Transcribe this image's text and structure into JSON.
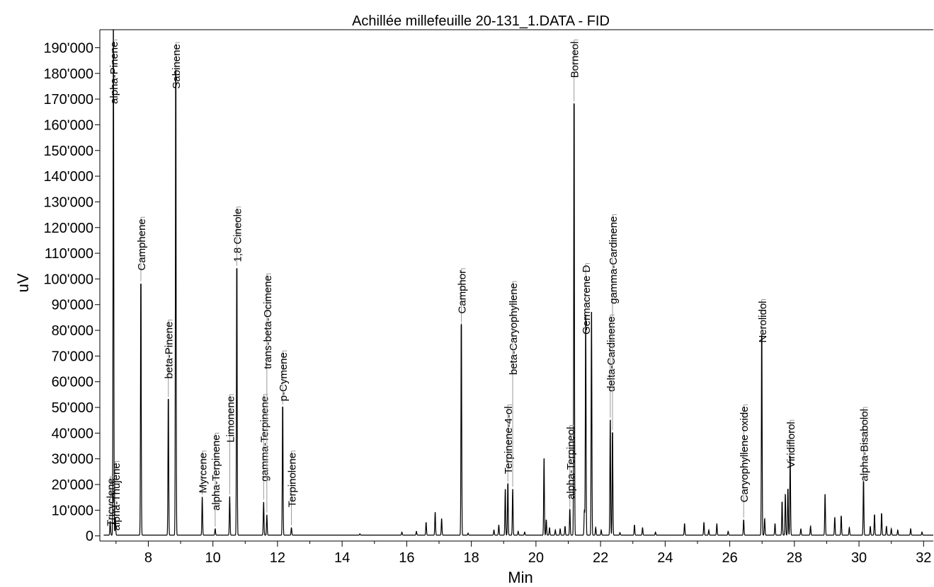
{
  "chart_data": {
    "type": "line",
    "title": "Achillée millefeuille 20-131_1.DATA - FID",
    "xlabel": "Min",
    "ylabel": "uV",
    "xlim": [
      6.5,
      32.3
    ],
    "ylim": [
      -2000,
      197000
    ],
    "xticks": [
      8,
      10,
      12,
      14,
      16,
      18,
      20,
      22,
      24,
      26,
      28,
      30,
      32
    ],
    "xtick_labels": [
      "8",
      "10",
      "12",
      "14",
      "16",
      "18",
      "20",
      "22",
      "24",
      "26",
      "28",
      "30",
      "32"
    ],
    "yticks": [
      0,
      10000,
      20000,
      30000,
      40000,
      50000,
      60000,
      70000,
      80000,
      90000,
      100000,
      110000,
      120000,
      130000,
      140000,
      150000,
      160000,
      170000,
      180000,
      190000
    ],
    "ytick_labels": [
      "0",
      "10'000",
      "20'000",
      "30'000",
      "40'000",
      "50'000",
      "60'000",
      "70'000",
      "80'000",
      "90'000",
      "100'000",
      "110'000",
      "120'000",
      "130'000",
      "140'000",
      "150'000",
      "160'000",
      "170'000",
      "180'000",
      "190'000"
    ],
    "grid": false,
    "legend": "none",
    "labeled_peaks": [
      {
        "name": "Tricyclene",
        "rt": 6.82,
        "height": 5500,
        "label_top": 23000
      },
      {
        "name": "alpha-Thujene",
        "rt": 6.98,
        "height": 7000,
        "label_top": 29000
      },
      {
        "name": "alpha-Pinene",
        "rt": 6.92,
        "height": 200000,
        "label_top": 193000
      },
      {
        "name": "Camphene",
        "rt": 7.77,
        "height": 98000,
        "label_top": 124000
      },
      {
        "name": "beta-Pinene",
        "rt": 8.62,
        "height": 53000,
        "label_top": 84000
      },
      {
        "name": "Sabinene",
        "rt": 8.85,
        "height": 181000,
        "label_top": 192000
      },
      {
        "name": "Myrcene",
        "rt": 9.67,
        "height": 15000,
        "label_top": 33000
      },
      {
        "name": "alpha-Terpinene",
        "rt": 10.07,
        "height": 2500,
        "label_top": 40000
      },
      {
        "name": "Limonene",
        "rt": 10.52,
        "height": 15000,
        "label_top": 55000
      },
      {
        "name": "1,8 Cineole",
        "rt": 10.74,
        "height": 104000,
        "label_top": 128000
      },
      {
        "name": "gamma-Terpinene",
        "rt": 11.57,
        "height": 13000,
        "label_top": 55000
      },
      {
        "name": "trans-beta-Ocimene",
        "rt": 11.67,
        "height": 8000,
        "label_top": 102000
      },
      {
        "name": "p-Cymene",
        "rt": 12.16,
        "height": 50000,
        "label_top": 72000
      },
      {
        "name": "Terpinolene",
        "rt": 12.43,
        "height": 3000,
        "label_top": 33000
      },
      {
        "name": "Camphor",
        "rt": 17.69,
        "height": 82000,
        "label_top": 104000
      },
      {
        "name": "Terpinene-4-ol",
        "rt": 19.13,
        "height": 20000,
        "label_top": 51000
      },
      {
        "name": "beta-Caryophyllene",
        "rt": 19.28,
        "height": 18000,
        "label_top": 99000
      },
      {
        "name": "alpha-Terpineol",
        "rt": 21.05,
        "height": 10000,
        "label_top": 43000
      },
      {
        "name": "Borneol",
        "rt": 21.18,
        "height": 168000,
        "label_top": 193000
      },
      {
        "name": "Germacrene D",
        "rt": 21.54,
        "height": 86000,
        "label_top": 106000
      },
      {
        "name": "delta-Cardinene",
        "rt": 22.3,
        "height": 45000,
        "label_top": 86000
      },
      {
        "name": "gamma-Cardinene",
        "rt": 22.37,
        "height": 40000,
        "label_top": 125000
      },
      {
        "name": "Caryophyllene oxide",
        "rt": 26.43,
        "height": 6000,
        "label_top": 51000
      },
      {
        "name": "Nerolidol",
        "rt": 26.99,
        "height": 78000,
        "label_top": 92000
      },
      {
        "name": "Viridiflorol",
        "rt": 27.87,
        "height": 31000,
        "label_top": 45000
      },
      {
        "name": "alpha-Bisabolol",
        "rt": 30.14,
        "height": 21000,
        "label_top": 50000
      }
    ],
    "minor_peaks": [
      {
        "rt": 14.55,
        "height": 500
      },
      {
        "rt": 15.85,
        "height": 1200
      },
      {
        "rt": 16.3,
        "height": 1500
      },
      {
        "rt": 16.6,
        "height": 5000
      },
      {
        "rt": 16.88,
        "height": 9000
      },
      {
        "rt": 17.08,
        "height": 6500
      },
      {
        "rt": 17.9,
        "height": 800
      },
      {
        "rt": 18.7,
        "height": 2000
      },
      {
        "rt": 18.85,
        "height": 4000
      },
      {
        "rt": 19.05,
        "height": 18000
      },
      {
        "rt": 19.45,
        "height": 1500
      },
      {
        "rt": 19.65,
        "height": 1200
      },
      {
        "rt": 20.25,
        "height": 30000
      },
      {
        "rt": 20.32,
        "height": 6000
      },
      {
        "rt": 20.42,
        "height": 3000
      },
      {
        "rt": 20.6,
        "height": 2000
      },
      {
        "rt": 20.75,
        "height": 2500
      },
      {
        "rt": 20.9,
        "height": 3500
      },
      {
        "rt": 21.5,
        "height": 10000
      },
      {
        "rt": 21.72,
        "height": 87000
      },
      {
        "rt": 21.85,
        "height": 3000
      },
      {
        "rt": 22.02,
        "height": 2000
      },
      {
        "rt": 22.6,
        "height": 1000
      },
      {
        "rt": 23.05,
        "height": 4000
      },
      {
        "rt": 23.3,
        "height": 3000
      },
      {
        "rt": 23.7,
        "height": 1200
      },
      {
        "rt": 24.6,
        "height": 4500
      },
      {
        "rt": 25.2,
        "height": 5000
      },
      {
        "rt": 25.35,
        "height": 2000
      },
      {
        "rt": 25.6,
        "height": 4500
      },
      {
        "rt": 25.95,
        "height": 1500
      },
      {
        "rt": 27.08,
        "height": 6500
      },
      {
        "rt": 27.4,
        "height": 4500
      },
      {
        "rt": 27.62,
        "height": 13000
      },
      {
        "rt": 27.72,
        "height": 16000
      },
      {
        "rt": 27.8,
        "height": 18000
      },
      {
        "rt": 28.2,
        "height": 2500
      },
      {
        "rt": 28.5,
        "height": 3500
      },
      {
        "rt": 28.95,
        "height": 16000
      },
      {
        "rt": 29.25,
        "height": 7000
      },
      {
        "rt": 29.45,
        "height": 7500
      },
      {
        "rt": 29.7,
        "height": 3000
      },
      {
        "rt": 30.35,
        "height": 3500
      },
      {
        "rt": 30.48,
        "height": 8000
      },
      {
        "rt": 30.7,
        "height": 8500
      },
      {
        "rt": 30.85,
        "height": 3500
      },
      {
        "rt": 31.0,
        "height": 2500
      },
      {
        "rt": 31.2,
        "height": 2000
      },
      {
        "rt": 31.6,
        "height": 2500
      },
      {
        "rt": 31.95,
        "height": 1200
      }
    ]
  }
}
